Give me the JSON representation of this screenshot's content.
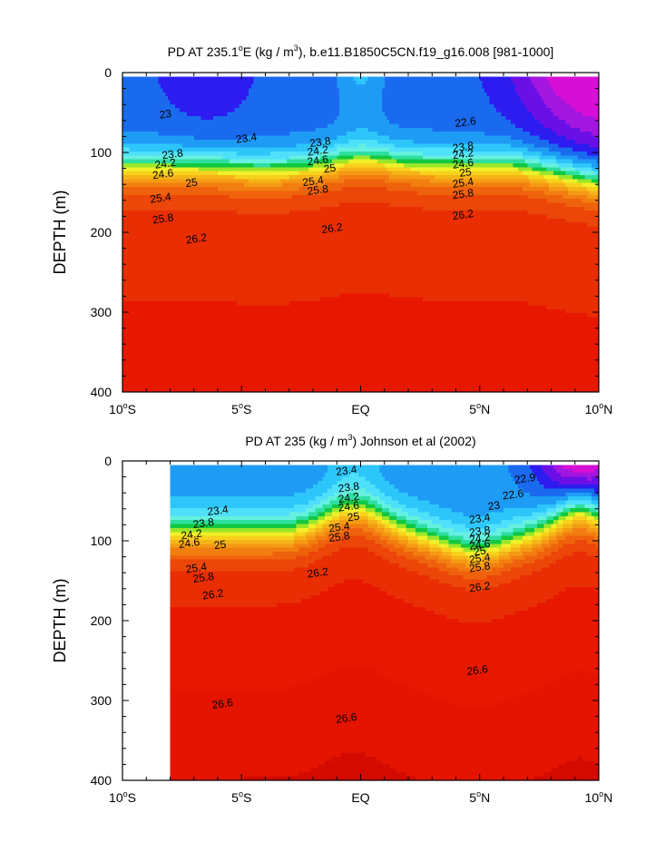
{
  "chart_data": [
    {
      "type": "heatmap",
      "title": "PD AT 235.1°E (kg / m³), b.e11.B1850C5CN.f19_g16.008 [981-1000]",
      "title_parts": {
        "pre": "PD AT 235.1",
        "deg": "o",
        "mid": "E (kg / m",
        "sup": "3",
        "post": "), b.e11.B1850C5CN.f19_g16.008 [981-1000]"
      },
      "xlabel": "",
      "ylabel": "DEPTH (m)",
      "xlim": [
        -10,
        10
      ],
      "ylim": [
        400,
        0
      ],
      "x_ticks": [
        {
          "value": -10,
          "label": "10°S",
          "num": "10",
          "hemi": "S"
        },
        {
          "value": -5,
          "label": "5°S",
          "num": "5",
          "hemi": "S"
        },
        {
          "value": 0,
          "label": "EQ",
          "num": "EQ",
          "hemi": ""
        },
        {
          "value": 5,
          "label": "5°N",
          "num": "5",
          "hemi": "N"
        },
        {
          "value": 10,
          "label": "10°N",
          "num": "10",
          "hemi": "N"
        }
      ],
      "y_ticks": [
        0,
        100,
        200,
        300,
        400
      ],
      "grid": false,
      "contour_interval": 0.2,
      "x_data_range": [
        -10,
        10
      ],
      "contour_labels": [
        {
          "text": "23",
          "x": -8.2,
          "depth": 52
        },
        {
          "text": "23.4",
          "x": -4.8,
          "depth": 82
        },
        {
          "text": "22.6",
          "x": 4.4,
          "depth": 62
        },
        {
          "text": "23.8",
          "x": -7.9,
          "depth": 102
        },
        {
          "text": "23.8",
          "x": -1.7,
          "depth": 87
        },
        {
          "text": "23.8",
          "x": 4.3,
          "depth": 93
        },
        {
          "text": "24.2",
          "x": -8.2,
          "depth": 114
        },
        {
          "text": "24.2",
          "x": -1.8,
          "depth": 98
        },
        {
          "text": "24.2",
          "x": 4.3,
          "depth": 102
        },
        {
          "text": "24.6",
          "x": -8.3,
          "depth": 127
        },
        {
          "text": "24.6",
          "x": -1.8,
          "depth": 110
        },
        {
          "text": "24.6",
          "x": 4.3,
          "depth": 114
        },
        {
          "text": "25",
          "x": -7.1,
          "depth": 138
        },
        {
          "text": "25",
          "x": -1.3,
          "depth": 120
        },
        {
          "text": "25",
          "x": 4.4,
          "depth": 125
        },
        {
          "text": "25.4",
          "x": -8.4,
          "depth": 157
        },
        {
          "text": "25.4",
          "x": -2.0,
          "depth": 136
        },
        {
          "text": "25.4",
          "x": 4.3,
          "depth": 138
        },
        {
          "text": "25.8",
          "x": -8.3,
          "depth": 183
        },
        {
          "text": "25.8",
          "x": -1.8,
          "depth": 147
        },
        {
          "text": "25.8",
          "x": 4.3,
          "depth": 152
        },
        {
          "text": "26.2",
          "x": -6.9,
          "depth": 208
        },
        {
          "text": "26.2",
          "x": -1.2,
          "depth": 195
        },
        {
          "text": "26.2",
          "x": 4.3,
          "depth": 178
        }
      ]
    },
    {
      "type": "heatmap",
      "title": "PD AT 235 (kg / m³) Johnson et al (2002)",
      "title_parts": {
        "pre": "PD AT 235 (kg / m",
        "deg": "",
        "mid": "",
        "sup": "3",
        "post": ") Johnson et al (2002)"
      },
      "xlabel": "",
      "ylabel": "DEPTH (m)",
      "xlim": [
        -10,
        10
      ],
      "ylim": [
        400,
        0
      ],
      "x_ticks": [
        {
          "value": -10,
          "label": "10°S",
          "num": "10",
          "hemi": "S"
        },
        {
          "value": -5,
          "label": "5°S",
          "num": "5",
          "hemi": "S"
        },
        {
          "value": 0,
          "label": "EQ",
          "num": "EQ",
          "hemi": ""
        },
        {
          "value": 5,
          "label": "5°N",
          "num": "5",
          "hemi": "N"
        },
        {
          "value": 10,
          "label": "10°N",
          "num": "10",
          "hemi": "N"
        }
      ],
      "y_ticks": [
        0,
        100,
        200,
        300,
        400
      ],
      "grid": false,
      "contour_interval": 0.2,
      "x_data_range": [
        -8,
        10
      ],
      "contour_labels": [
        {
          "text": "23.4",
          "x": -0.6,
          "depth": 12
        },
        {
          "text": "23.4",
          "x": -6.0,
          "depth": 62
        },
        {
          "text": "22.6",
          "x": 6.4,
          "depth": 42
        },
        {
          "text": "22.9",
          "x": 6.9,
          "depth": 22
        },
        {
          "text": "23",
          "x": 5.6,
          "depth": 56
        },
        {
          "text": "23.4",
          "x": 5.0,
          "depth": 72
        },
        {
          "text": "23.8",
          "x": -0.5,
          "depth": 33
        },
        {
          "text": "23.8",
          "x": -6.6,
          "depth": 78
        },
        {
          "text": "23.8",
          "x": 5.0,
          "depth": 88
        },
        {
          "text": "24.2",
          "x": -0.5,
          "depth": 46
        },
        {
          "text": "24.2",
          "x": -7.1,
          "depth": 92
        },
        {
          "text": "24.2",
          "x": 5.0,
          "depth": 97
        },
        {
          "text": "24.6",
          "x": -0.5,
          "depth": 57
        },
        {
          "text": "24.6",
          "x": -7.2,
          "depth": 103
        },
        {
          "text": "24.6",
          "x": 5.0,
          "depth": 105
        },
        {
          "text": "25",
          "x": -5.9,
          "depth": 105
        },
        {
          "text": "25",
          "x": -0.3,
          "depth": 70
        },
        {
          "text": "25",
          "x": 5.0,
          "depth": 113
        },
        {
          "text": "25.4",
          "x": -0.9,
          "depth": 83
        },
        {
          "text": "25.4",
          "x": -6.9,
          "depth": 134
        },
        {
          "text": "25.4",
          "x": 5.0,
          "depth": 122
        },
        {
          "text": "25.8",
          "x": -0.9,
          "depth": 95
        },
        {
          "text": "25.8",
          "x": -6.6,
          "depth": 146
        },
        {
          "text": "25.8",
          "x": 5.0,
          "depth": 133
        },
        {
          "text": "26.2",
          "x": -6.2,
          "depth": 167
        },
        {
          "text": "26.2",
          "x": -1.8,
          "depth": 140
        },
        {
          "text": "26.2",
          "x": 5.0,
          "depth": 158
        },
        {
          "text": "26.6",
          "x": 4.9,
          "depth": 262
        },
        {
          "text": "26.6",
          "x": -5.8,
          "depth": 304
        },
        {
          "text": "26.6",
          "x": -0.6,
          "depth": 322
        }
      ]
    }
  ]
}
